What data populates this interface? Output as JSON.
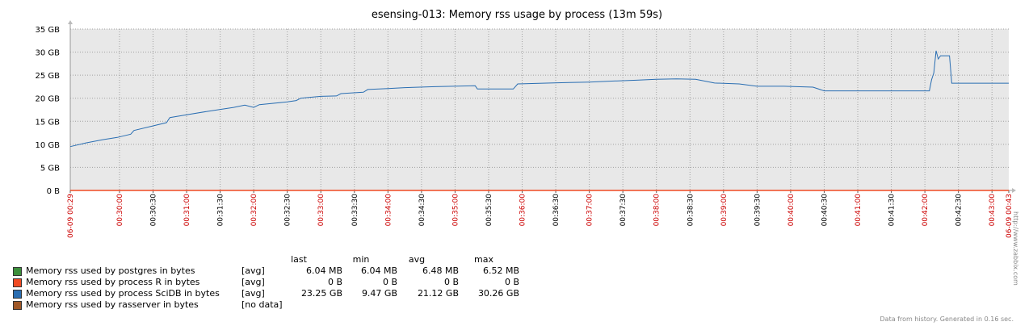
{
  "chart_data": {
    "type": "line",
    "title": "esensing-013: Memory rss usage by process (13m 59s)",
    "y_ticks": [
      "0 B",
      "5 GB",
      "10 GB",
      "15 GB",
      "20 GB",
      "25 GB",
      "30 GB",
      "35 GB"
    ],
    "ylim": [
      0,
      35
    ],
    "x_ticks": [
      {
        "label": "06-09 00:29",
        "red": true
      },
      {
        "label": "00:30:00",
        "red": true
      },
      {
        "label": "00:30:30",
        "red": false
      },
      {
        "label": "00:31:00",
        "red": true
      },
      {
        "label": "00:31:30",
        "red": false
      },
      {
        "label": "00:32:00",
        "red": true
      },
      {
        "label": "00:32:30",
        "red": false
      },
      {
        "label": "00:33:00",
        "red": true
      },
      {
        "label": "00:33:30",
        "red": false
      },
      {
        "label": "00:34:00",
        "red": true
      },
      {
        "label": "00:34:30",
        "red": false
      },
      {
        "label": "00:35:00",
        "red": true
      },
      {
        "label": "00:35:30",
        "red": false
      },
      {
        "label": "00:36:00",
        "red": true
      },
      {
        "label": "00:36:30",
        "red": false
      },
      {
        "label": "00:37:00",
        "red": true
      },
      {
        "label": "00:37:30",
        "red": false
      },
      {
        "label": "00:38:00",
        "red": true
      },
      {
        "label": "00:38:30",
        "red": false
      },
      {
        "label": "00:39:00",
        "red": true
      },
      {
        "label": "00:39:30",
        "red": false
      },
      {
        "label": "00:40:00",
        "red": true
      },
      {
        "label": "00:40:30",
        "red": false
      },
      {
        "label": "00:41:00",
        "red": true
      },
      {
        "label": "00:41:30",
        "red": false
      },
      {
        "label": "00:42:00",
        "red": true
      },
      {
        "label": "00:42:30",
        "red": false
      },
      {
        "label": "00:43:00",
        "red": true
      },
      {
        "label": "06-09 00:43",
        "red": true
      }
    ],
    "xlim": [
      "00:29:16",
      "00:43:15"
    ],
    "colors": {
      "background": "#e8e8e8",
      "grid": "#a0a0a0",
      "postgres": "#3b8f3b",
      "R": "#f04a22",
      "scidb": "#2a6eb2",
      "rasserver": "#a05828",
      "red_label": "#cc0000"
    },
    "series": [
      {
        "name": "Memory rss used by process SciDB in bytes",
        "color": "#2a6eb2",
        "points": [
          [
            "00:29:16",
            9.5
          ],
          [
            "00:29:30",
            10.3
          ],
          [
            "00:29:45",
            11.0
          ],
          [
            "00:29:58",
            11.5
          ],
          [
            "00:30:10",
            12.2
          ],
          [
            "00:30:13",
            13.0
          ],
          [
            "00:30:30",
            14.0
          ],
          [
            "00:30:42",
            14.7
          ],
          [
            "00:30:45",
            15.8
          ],
          [
            "00:31:00",
            16.4
          ],
          [
            "00:31:20",
            17.2
          ],
          [
            "00:31:42",
            18.0
          ],
          [
            "00:31:52",
            18.5
          ],
          [
            "00:32:00",
            18.0
          ],
          [
            "00:32:05",
            18.6
          ],
          [
            "00:32:30",
            19.2
          ],
          [
            "00:32:38",
            19.5
          ],
          [
            "00:32:42",
            20.0
          ],
          [
            "00:33:00",
            20.4
          ],
          [
            "00:33:14",
            20.5
          ],
          [
            "00:33:18",
            21.0
          ],
          [
            "00:33:38",
            21.3
          ],
          [
            "00:33:42",
            21.9
          ],
          [
            "00:34:00",
            22.1
          ],
          [
            "00:34:15",
            22.3
          ],
          [
            "00:34:42",
            22.5
          ],
          [
            "00:35:18",
            22.7
          ],
          [
            "00:35:20",
            22.0
          ],
          [
            "00:35:52",
            22.0
          ],
          [
            "00:35:56",
            23.1
          ],
          [
            "00:36:12",
            23.2
          ],
          [
            "00:36:25",
            23.3
          ],
          [
            "00:36:42",
            23.4
          ],
          [
            "00:37:00",
            23.5
          ],
          [
            "00:37:18",
            23.7
          ],
          [
            "00:37:42",
            23.9
          ],
          [
            "00:38:00",
            24.1
          ],
          [
            "00:38:18",
            24.2
          ],
          [
            "00:38:35",
            24.1
          ],
          [
            "00:38:52",
            23.3
          ],
          [
            "00:39:14",
            23.1
          ],
          [
            "00:39:30",
            22.6
          ],
          [
            "00:39:54",
            22.6
          ],
          [
            "00:40:20",
            22.4
          ],
          [
            "00:40:30",
            21.6
          ],
          [
            "00:41:30",
            21.6
          ],
          [
            "00:42:04",
            21.6
          ],
          [
            "00:42:06",
            24.0
          ],
          [
            "00:42:08",
            25.5
          ],
          [
            "00:42:10",
            30.3
          ],
          [
            "00:42:12",
            28.5
          ],
          [
            "00:42:14",
            29.2
          ],
          [
            "00:42:22",
            29.2
          ],
          [
            "00:42:24",
            23.25
          ],
          [
            "00:43:15",
            23.25
          ]
        ]
      },
      {
        "name": "Memory rss used by process R in bytes",
        "color": "#f04a22",
        "points": [
          [
            "00:29:16",
            0
          ],
          [
            "00:43:15",
            0
          ]
        ]
      }
    ],
    "legend": {
      "headers": {
        "last": "last",
        "min": "min",
        "avg": "avg",
        "max": "max"
      },
      "rows": [
        {
          "color": "#3b8f3b",
          "name": "Memory rss used by postgres in bytes",
          "func": "[avg]",
          "last": "6.04 MB",
          "min": "6.04 MB",
          "avg": "6.48 MB",
          "max": "6.52 MB"
        },
        {
          "color": "#f04a22",
          "name": "Memory rss used by process R in bytes",
          "func": "[avg]",
          "last": "0 B",
          "min": "0 B",
          "avg": "0 B",
          "max": "0 B"
        },
        {
          "color": "#2a6eb2",
          "name": "Memory rss used by process SciDB in bytes",
          "func": "[avg]",
          "last": "23.25 GB",
          "min": "9.47 GB",
          "avg": "21.12 GB",
          "max": "30.26 GB"
        },
        {
          "color": "#a05828",
          "name": "Memory rss used by rasserver in bytes",
          "func": "[no data]",
          "last": "",
          "min": "",
          "avg": "",
          "max": ""
        }
      ]
    }
  },
  "side_url": "http://www.zabbix.com",
  "footer": "Data from history. Generated in 0.16 sec."
}
